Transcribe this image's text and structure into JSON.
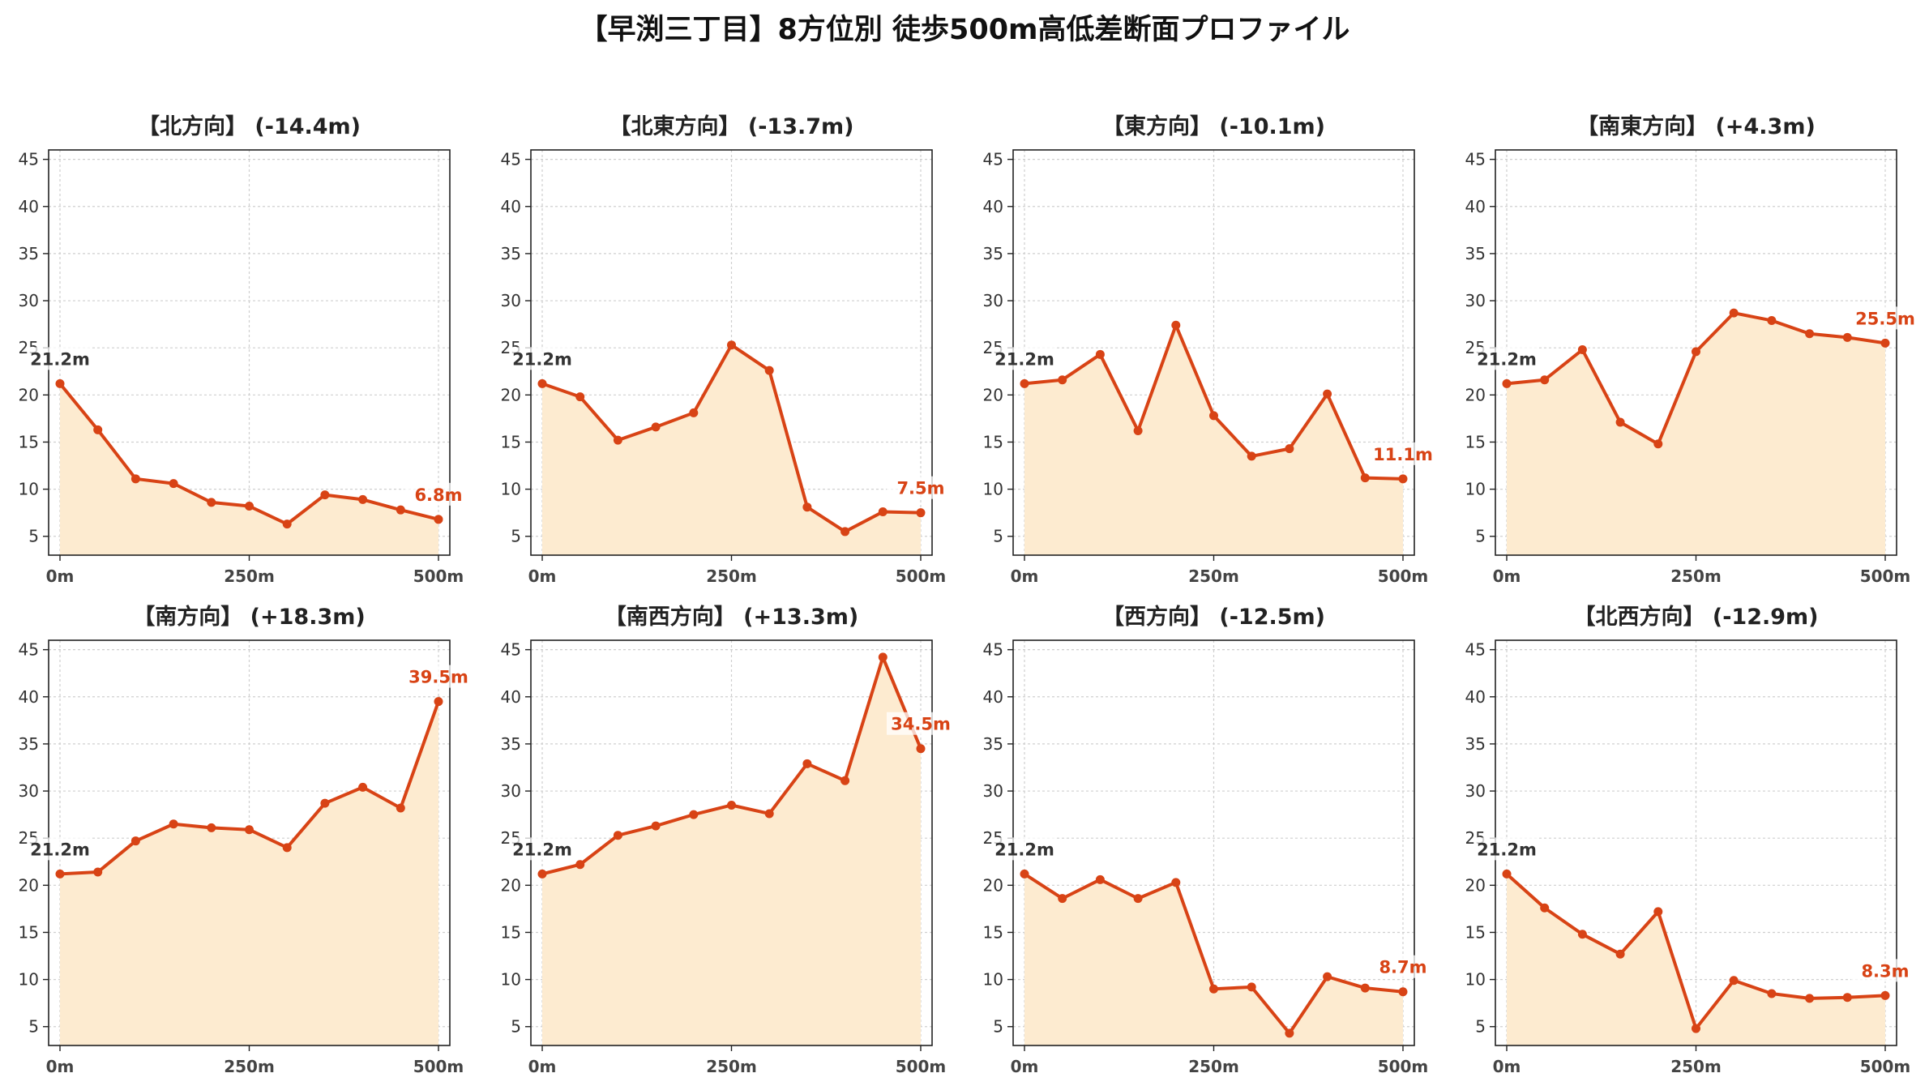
{
  "title": "【早渕三丁目】8方位別 徒歩500m高低差断面プロファイル",
  "colors": {
    "line": "#d84315",
    "fill": "#fdebd0",
    "grid": "#cfcfcf",
    "start_label": "#333333"
  },
  "chart_data": [
    {
      "type": "area",
      "title": "【北方向】 (-14.4m)",
      "start_label": "21.2m",
      "end_label": "6.8m",
      "x": [
        0,
        50,
        100,
        150,
        200,
        250,
        300,
        350,
        400,
        450,
        500
      ],
      "values": [
        21.2,
        16.3,
        11.1,
        10.6,
        8.6,
        8.2,
        6.3,
        9.4,
        8.9,
        7.8,
        6.8
      ],
      "xticks": [
        "0m",
        "250m",
        "500m"
      ],
      "yticks": [
        5,
        10,
        15,
        20,
        25,
        30,
        35,
        40,
        45
      ],
      "ylim": [
        3,
        46
      ],
      "xlim": [
        -15,
        515
      ],
      "grid": true
    },
    {
      "type": "area",
      "title": "【北東方向】 (-13.7m)",
      "start_label": "21.2m",
      "end_label": "7.5m",
      "x": [
        0,
        50,
        100,
        150,
        200,
        250,
        300,
        350,
        400,
        450,
        500
      ],
      "values": [
        21.2,
        19.8,
        15.2,
        16.6,
        18.1,
        25.3,
        22.6,
        8.1,
        5.5,
        7.6,
        7.5
      ],
      "xticks": [
        "0m",
        "250m",
        "500m"
      ],
      "yticks": [
        5,
        10,
        15,
        20,
        25,
        30,
        35,
        40,
        45
      ],
      "ylim": [
        3,
        46
      ],
      "xlim": [
        -15,
        515
      ],
      "grid": true
    },
    {
      "type": "area",
      "title": "【東方向】 (-10.1m)",
      "start_label": "21.2m",
      "end_label": "11.1m",
      "x": [
        0,
        50,
        100,
        150,
        200,
        250,
        300,
        350,
        400,
        450,
        500
      ],
      "values": [
        21.2,
        21.6,
        24.3,
        16.2,
        27.4,
        17.8,
        13.5,
        14.3,
        20.1,
        11.2,
        11.1
      ],
      "xticks": [
        "0m",
        "250m",
        "500m"
      ],
      "yticks": [
        5,
        10,
        15,
        20,
        25,
        30,
        35,
        40,
        45
      ],
      "ylim": [
        3,
        46
      ],
      "xlim": [
        -15,
        515
      ],
      "grid": true
    },
    {
      "type": "area",
      "title": "【南東方向】 (+4.3m)",
      "start_label": "21.2m",
      "end_label": "25.5m",
      "x": [
        0,
        50,
        100,
        150,
        200,
        250,
        300,
        350,
        400,
        450,
        500
      ],
      "values": [
        21.2,
        21.6,
        24.8,
        17.1,
        14.8,
        24.6,
        28.7,
        27.9,
        26.5,
        26.1,
        25.5
      ],
      "xticks": [
        "0m",
        "250m",
        "500m"
      ],
      "yticks": [
        5,
        10,
        15,
        20,
        25,
        30,
        35,
        40,
        45
      ],
      "ylim": [
        3,
        46
      ],
      "xlim": [
        -15,
        515
      ],
      "grid": true
    },
    {
      "type": "area",
      "title": "【南方向】 (+18.3m)",
      "start_label": "21.2m",
      "end_label": "39.5m",
      "x": [
        0,
        50,
        100,
        150,
        200,
        250,
        300,
        350,
        400,
        450,
        500
      ],
      "values": [
        21.2,
        21.4,
        24.7,
        26.5,
        26.1,
        25.9,
        24.0,
        28.7,
        30.4,
        28.2,
        39.5
      ],
      "xticks": [
        "0m",
        "250m",
        "500m"
      ],
      "yticks": [
        5,
        10,
        15,
        20,
        25,
        30,
        35,
        40,
        45
      ],
      "ylim": [
        3,
        46
      ],
      "xlim": [
        -15,
        515
      ],
      "grid": true
    },
    {
      "type": "area",
      "title": "【南西方向】 (+13.3m)",
      "start_label": "21.2m",
      "end_label": "34.5m",
      "x": [
        0,
        50,
        100,
        150,
        200,
        250,
        300,
        350,
        400,
        450,
        500
      ],
      "values": [
        21.2,
        22.2,
        25.3,
        26.3,
        27.5,
        28.5,
        27.6,
        32.9,
        31.1,
        44.2,
        34.5
      ],
      "xticks": [
        "0m",
        "250m",
        "500m"
      ],
      "yticks": [
        5,
        10,
        15,
        20,
        25,
        30,
        35,
        40,
        45
      ],
      "ylim": [
        3,
        46
      ],
      "xlim": [
        -15,
        515
      ],
      "grid": true
    },
    {
      "type": "area",
      "title": "【西方向】 (-12.5m)",
      "start_label": "21.2m",
      "end_label": "8.7m",
      "x": [
        0,
        50,
        100,
        150,
        200,
        250,
        300,
        350,
        400,
        450,
        500
      ],
      "values": [
        21.2,
        18.6,
        20.6,
        18.6,
        20.3,
        9.0,
        9.2,
        4.3,
        10.3,
        9.1,
        8.7
      ],
      "xticks": [
        "0m",
        "250m",
        "500m"
      ],
      "yticks": [
        5,
        10,
        15,
        20,
        25,
        30,
        35,
        40,
        45
      ],
      "ylim": [
        3,
        46
      ],
      "xlim": [
        -15,
        515
      ],
      "grid": true
    },
    {
      "type": "area",
      "title": "【北西方向】 (-12.9m)",
      "start_label": "21.2m",
      "end_label": "8.3m",
      "x": [
        0,
        50,
        100,
        150,
        200,
        250,
        300,
        350,
        400,
        450,
        500
      ],
      "values": [
        21.2,
        17.6,
        14.8,
        12.7,
        17.2,
        4.8,
        9.9,
        8.5,
        8.0,
        8.1,
        8.3
      ],
      "xticks": [
        "0m",
        "250m",
        "500m"
      ],
      "yticks": [
        5,
        10,
        15,
        20,
        25,
        30,
        35,
        40,
        45
      ],
      "ylim": [
        3,
        46
      ],
      "xlim": [
        -15,
        515
      ],
      "grid": true
    }
  ]
}
